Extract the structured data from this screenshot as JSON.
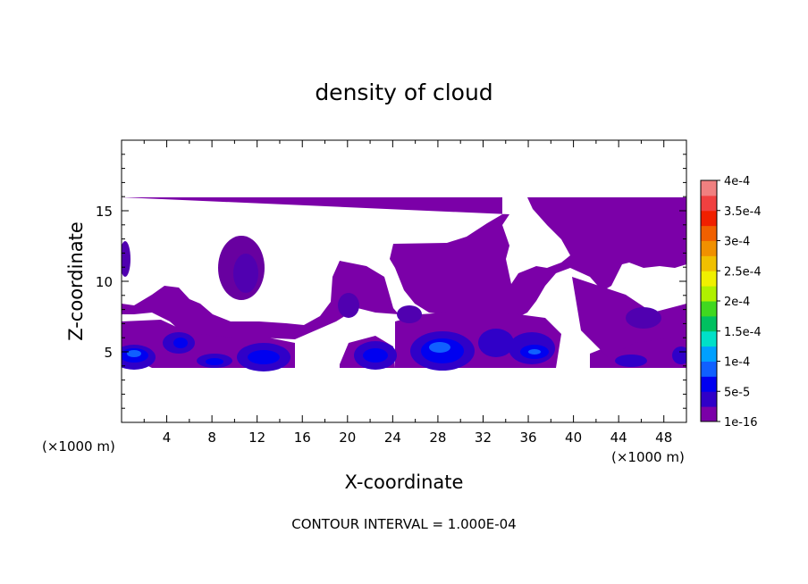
{
  "chart_data": {
    "type": "heatmap",
    "title": "density of cloud",
    "xlabel": "X-coordinate",
    "ylabel": "Z-coordinate",
    "x_unit": "(×1000 m)",
    "y_unit": "(×1000 m)",
    "xlim": [
      0,
      50
    ],
    "ylim": [
      0,
      20
    ],
    "x_ticks": [
      "4",
      "8",
      "12",
      "16",
      "20",
      "24",
      "28",
      "32",
      "36",
      "40",
      "44",
      "48"
    ],
    "y_ticks": [
      "5",
      "10",
      "15"
    ],
    "colorbar": {
      "labels": [
        "1e-16",
        "5e-5",
        "1e-4",
        "1.5e-4",
        "2e-4",
        "2.5e-4",
        "3e-4",
        "3.5e-4",
        "4e-4"
      ],
      "colors": [
        "#7b00a8",
        "#3000c8",
        "#0000f0",
        "#1060ff",
        "#00a0ff",
        "#00e0c8",
        "#00c060",
        "#40d820",
        "#b0f000",
        "#f0f000",
        "#f0c000",
        "#f09000",
        "#f06000",
        "#f02000",
        "#f04040",
        "#f08080"
      ]
    },
    "footer": "CONTOUR INTERVAL = 1.000E-04",
    "colors": {
      "background": "#7b00a8",
      "low": "#3000c8",
      "mid": "#0000f0",
      "high": "#1060ff",
      "peak": "#00a0ff"
    }
  }
}
